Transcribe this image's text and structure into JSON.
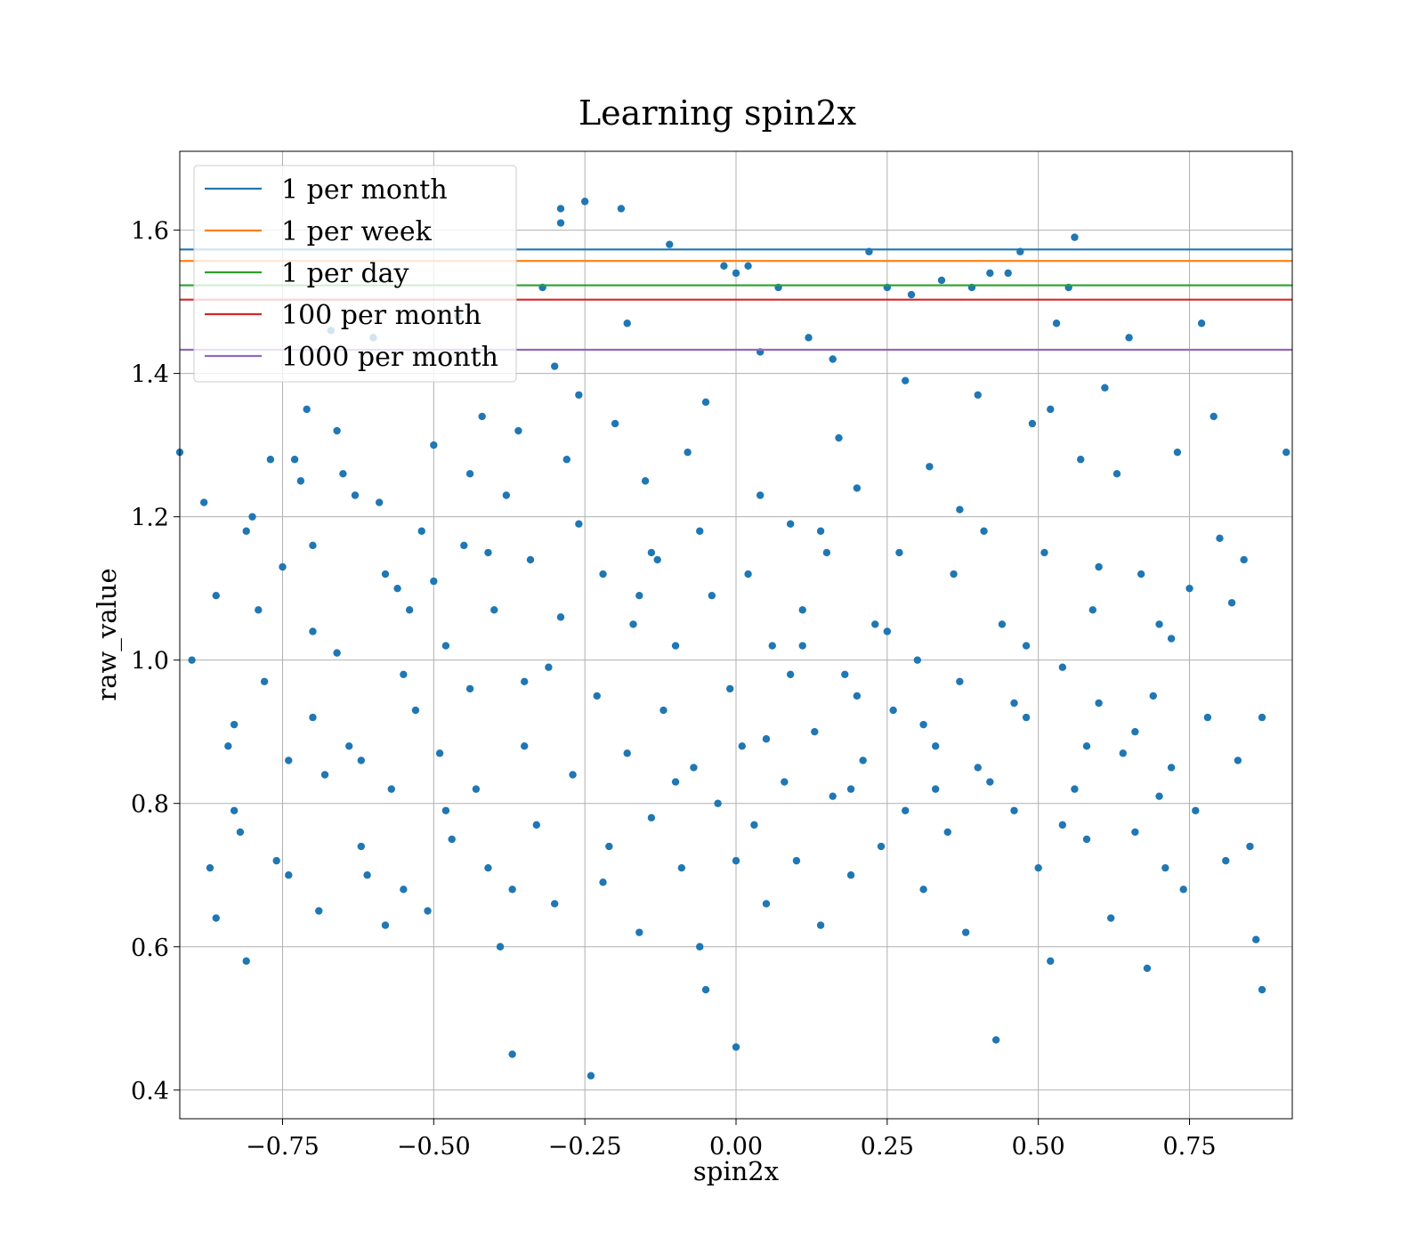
{
  "chart_data": {
    "type": "scatter",
    "title": "Learning spin2x",
    "xlabel": "spin2x",
    "ylabel": "raw_value",
    "xlim": [
      -0.92,
      0.92
    ],
    "ylim": [
      0.36,
      1.71
    ],
    "xticks": [
      -0.75,
      -0.5,
      -0.25,
      0.0,
      0.25,
      0.5,
      0.75
    ],
    "xtick_labels": [
      "−0.75",
      "−0.50",
      "−0.25",
      "0.00",
      "0.25",
      "0.50",
      "0.75"
    ],
    "yticks": [
      0.4,
      0.6,
      0.8,
      1.0,
      1.2,
      1.4,
      1.6
    ],
    "ytick_labels": [
      "0.4",
      "0.6",
      "0.8",
      "1.0",
      "1.2",
      "1.4",
      "1.6"
    ],
    "grid": true,
    "legend_position": "top-left",
    "point_color": "#1f77b4",
    "hlines": [
      {
        "name": "1 per month",
        "y": 1.573,
        "color": "#1f77b4"
      },
      {
        "name": "1 per week",
        "y": 1.557,
        "color": "#ff7f0e"
      },
      {
        "name": "1 per day",
        "y": 1.523,
        "color": "#2ca02c"
      },
      {
        "name": "100 per month",
        "y": 1.503,
        "color": "#d62728"
      },
      {
        "name": "1000 per month",
        "y": 1.433,
        "color": "#9467bd"
      }
    ],
    "series": [
      {
        "points": [
          [
            -0.92,
            1.29
          ],
          [
            0.91,
            1.29
          ],
          [
            -0.9,
            1.0
          ],
          [
            -0.88,
            1.22
          ],
          [
            -0.87,
            0.71
          ],
          [
            -0.86,
            0.64
          ],
          [
            -0.86,
            1.09
          ],
          [
            -0.84,
            0.88
          ],
          [
            -0.83,
            0.79
          ],
          [
            -0.83,
            0.91
          ],
          [
            -0.82,
            0.76
          ],
          [
            -0.81,
            1.18
          ],
          [
            -0.81,
            0.58
          ],
          [
            -0.8,
            1.2
          ],
          [
            -0.79,
            1.07
          ],
          [
            -0.78,
            0.97
          ],
          [
            -0.77,
            1.28
          ],
          [
            -0.76,
            0.72
          ],
          [
            -0.75,
            1.13
          ],
          [
            -0.74,
            0.7
          ],
          [
            -0.73,
            1.28
          ],
          [
            -0.72,
            1.25
          ],
          [
            -0.71,
            1.35
          ],
          [
            -0.7,
            1.04
          ],
          [
            -0.7,
            0.92
          ],
          [
            -0.69,
            0.65
          ],
          [
            -0.68,
            0.84
          ],
          [
            -0.67,
            1.46
          ],
          [
            -0.66,
            1.32
          ],
          [
            -0.65,
            1.26
          ],
          [
            -0.64,
            0.88
          ],
          [
            -0.63,
            1.23
          ],
          [
            -0.62,
            0.86
          ],
          [
            -0.61,
            0.7
          ],
          [
            -0.6,
            1.45
          ],
          [
            -0.59,
            1.22
          ],
          [
            -0.58,
            1.12
          ],
          [
            -0.57,
            0.82
          ],
          [
            -0.56,
            1.1
          ],
          [
            -0.55,
            0.68
          ],
          [
            -0.54,
            1.07
          ],
          [
            -0.53,
            0.93
          ],
          [
            -0.52,
            1.18
          ],
          [
            -0.51,
            0.65
          ],
          [
            -0.5,
            1.3
          ],
          [
            -0.49,
            0.87
          ],
          [
            -0.48,
            1.02
          ],
          [
            -0.47,
            0.75
          ],
          [
            -0.46,
            1.48
          ],
          [
            -0.45,
            1.16
          ],
          [
            -0.44,
            0.96
          ],
          [
            -0.43,
            0.82
          ],
          [
            -0.42,
            1.34
          ],
          [
            -0.41,
            0.71
          ],
          [
            -0.4,
            1.07
          ],
          [
            -0.39,
            0.6
          ],
          [
            -0.38,
            1.23
          ],
          [
            -0.37,
            0.45
          ],
          [
            -0.36,
            1.32
          ],
          [
            -0.35,
            0.88
          ],
          [
            -0.34,
            1.14
          ],
          [
            -0.33,
            0.77
          ],
          [
            -0.32,
            1.52
          ],
          [
            -0.31,
            0.99
          ],
          [
            -0.3,
            0.66
          ],
          [
            -0.29,
            1.06
          ],
          [
            -0.29,
            1.63
          ],
          [
            -0.29,
            1.61
          ],
          [
            -0.27,
            0.84
          ],
          [
            -0.26,
            1.19
          ],
          [
            -0.25,
            1.64
          ],
          [
            -0.24,
            0.42
          ],
          [
            -0.23,
            0.95
          ],
          [
            -0.22,
            1.12
          ],
          [
            -0.21,
            0.74
          ],
          [
            -0.2,
            1.33
          ],
          [
            -0.19,
            1.63
          ],
          [
            -0.18,
            0.87
          ],
          [
            -0.17,
            1.05
          ],
          [
            -0.16,
            0.62
          ],
          [
            -0.15,
            1.25
          ],
          [
            -0.14,
            0.78
          ],
          [
            -0.13,
            1.14
          ],
          [
            -0.12,
            0.93
          ],
          [
            -0.11,
            1.58
          ],
          [
            -0.1,
            1.02
          ],
          [
            -0.09,
            0.71
          ],
          [
            -0.08,
            1.29
          ],
          [
            -0.07,
            0.85
          ],
          [
            -0.06,
            1.18
          ],
          [
            -0.05,
            0.54
          ],
          [
            -0.04,
            1.09
          ],
          [
            -0.03,
            0.8
          ],
          [
            -0.02,
            1.55
          ],
          [
            -0.01,
            0.96
          ],
          [
            0.0,
            0.46
          ],
          [
            0.0,
            1.54
          ],
          [
            0.01,
            0.88
          ],
          [
            0.02,
            1.12
          ],
          [
            0.02,
            1.55
          ],
          [
            0.03,
            0.77
          ],
          [
            0.04,
            1.23
          ],
          [
            0.05,
            0.66
          ],
          [
            0.06,
            1.02
          ],
          [
            0.07,
            1.52
          ],
          [
            0.08,
            0.83
          ],
          [
            0.09,
            1.19
          ],
          [
            0.1,
            0.72
          ],
          [
            0.11,
            1.07
          ],
          [
            0.12,
            1.45
          ],
          [
            0.13,
            0.9
          ],
          [
            0.14,
            0.63
          ],
          [
            0.15,
            1.15
          ],
          [
            0.16,
            0.81
          ],
          [
            0.17,
            1.31
          ],
          [
            0.18,
            0.98
          ],
          [
            0.19,
            0.7
          ],
          [
            0.2,
            1.24
          ],
          [
            0.21,
            0.86
          ],
          [
            0.22,
            1.57
          ],
          [
            0.23,
            1.05
          ],
          [
            0.24,
            0.74
          ],
          [
            0.25,
            1.52
          ],
          [
            0.26,
            0.93
          ],
          [
            0.27,
            1.15
          ],
          [
            0.28,
            0.79
          ],
          [
            0.29,
            1.51
          ],
          [
            0.3,
            1.0
          ],
          [
            0.31,
            0.68
          ],
          [
            0.32,
            1.27
          ],
          [
            0.33,
            0.88
          ],
          [
            0.34,
            1.53
          ],
          [
            0.35,
            0.76
          ],
          [
            0.36,
            1.12
          ],
          [
            0.37,
            0.97
          ],
          [
            0.38,
            0.62
          ],
          [
            0.39,
            1.52
          ],
          [
            0.4,
            0.85
          ],
          [
            0.41,
            1.18
          ],
          [
            0.42,
            1.54
          ],
          [
            0.43,
            0.47
          ],
          [
            0.44,
            1.05
          ],
          [
            0.45,
            1.54
          ],
          [
            0.46,
            0.79
          ],
          [
            0.47,
            1.57
          ],
          [
            0.48,
            0.92
          ],
          [
            0.49,
            1.33
          ],
          [
            0.5,
            0.71
          ],
          [
            0.51,
            1.15
          ],
          [
            0.52,
            0.58
          ],
          [
            0.53,
            1.47
          ],
          [
            0.54,
            0.99
          ],
          [
            0.55,
            1.52
          ],
          [
            0.56,
            0.82
          ],
          [
            0.56,
            1.59
          ],
          [
            0.57,
            1.28
          ],
          [
            0.58,
            0.75
          ],
          [
            0.59,
            1.07
          ],
          [
            0.6,
            0.94
          ],
          [
            0.61,
            1.38
          ],
          [
            0.62,
            0.64
          ],
          [
            0.63,
            1.26
          ],
          [
            0.64,
            0.87
          ],
          [
            0.65,
            1.45
          ],
          [
            0.66,
            0.76
          ],
          [
            0.67,
            1.12
          ],
          [
            0.68,
            0.57
          ],
          [
            0.69,
            0.95
          ],
          [
            0.7,
            1.05
          ],
          [
            0.71,
            0.71
          ],
          [
            0.72,
            0.85
          ],
          [
            0.73,
            1.29
          ],
          [
            0.74,
            0.68
          ],
          [
            0.75,
            1.1
          ],
          [
            0.76,
            0.79
          ],
          [
            0.77,
            1.47
          ],
          [
            0.78,
            0.92
          ],
          [
            0.79,
            1.34
          ],
          [
            0.8,
            1.17
          ],
          [
            0.81,
            0.72
          ],
          [
            0.82,
            1.08
          ],
          [
            0.83,
            0.86
          ],
          [
            0.84,
            1.14
          ],
          [
            0.85,
            0.74
          ],
          [
            0.86,
            0.61
          ],
          [
            0.87,
            0.92
          ],
          [
            0.87,
            0.54
          ],
          [
            -0.7,
            1.16
          ],
          [
            -0.62,
            0.74
          ],
          [
            -0.55,
            0.98
          ],
          [
            -0.48,
            0.79
          ],
          [
            -0.41,
            1.15
          ],
          [
            -0.35,
            0.97
          ],
          [
            -0.28,
            1.28
          ],
          [
            -0.22,
            0.69
          ],
          [
            -0.16,
            1.09
          ],
          [
            -0.1,
            0.83
          ],
          [
            -0.05,
            1.36
          ],
          [
            0.0,
            0.72
          ],
          [
            0.05,
            0.89
          ],
          [
            0.09,
            0.98
          ],
          [
            0.14,
            1.18
          ],
          [
            0.19,
            0.82
          ],
          [
            0.25,
            1.04
          ],
          [
            0.31,
            0.91
          ],
          [
            0.37,
            1.21
          ],
          [
            0.42,
            0.83
          ],
          [
            0.48,
            1.02
          ],
          [
            0.54,
            0.77
          ],
          [
            0.6,
            1.13
          ],
          [
            0.66,
            0.9
          ],
          [
            0.72,
            1.03
          ],
          [
            -0.74,
            0.86
          ],
          [
            -0.58,
            0.63
          ],
          [
            -0.44,
            1.26
          ],
          [
            -0.3,
            1.41
          ],
          [
            -0.18,
            1.47
          ],
          [
            -0.06,
            0.6
          ],
          [
            0.04,
            1.43
          ],
          [
            0.16,
            1.42
          ],
          [
            0.28,
            1.39
          ],
          [
            0.4,
            1.37
          ],
          [
            0.52,
            1.35
          ],
          [
            -0.66,
            1.01
          ],
          [
            -0.5,
            1.11
          ],
          [
            -0.37,
            0.68
          ],
          [
            -0.26,
            1.37
          ],
          [
            -0.14,
            1.15
          ],
          [
            0.11,
            1.02
          ],
          [
            0.2,
            0.95
          ],
          [
            0.33,
            0.82
          ],
          [
            0.46,
            0.94
          ],
          [
            0.58,
            0.88
          ],
          [
            0.7,
            0.81
          ]
        ]
      }
    ]
  }
}
